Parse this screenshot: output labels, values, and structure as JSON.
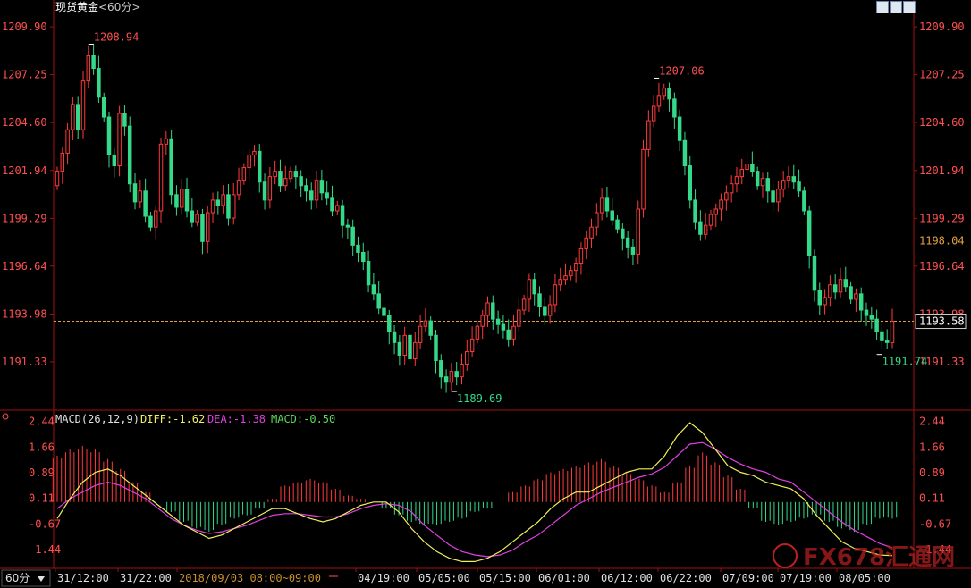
{
  "header": {
    "title": "现货黄金",
    "period": "<60分>"
  },
  "toolbar": {
    "icons": [
      "view-toggle-icon",
      "list-icon",
      "fullscreen-icon"
    ]
  },
  "price_axis": {
    "ticks": [
      "1209.90",
      "1207.25",
      "1204.60",
      "1201.94",
      "1199.29",
      "1196.64",
      "1193.98",
      "1191.33"
    ],
    "extra_right": "1198.04",
    "current": "1193.58"
  },
  "annotations": {
    "high1": "1208.94",
    "high2": "1207.06",
    "low1": "1189.69",
    "low2": "1191.74"
  },
  "macd": {
    "label": "MACD(26,12,9)",
    "diff": "DIFF:-1.62",
    "dea": "DEA:-1.38",
    "macd": "MACD:-0.50",
    "ticks": [
      "2.44",
      "1.66",
      "0.89",
      "0.11",
      "-0.67",
      "-1.44"
    ]
  },
  "time_axis": {
    "period_button": "60分",
    "labels": [
      "31/12:00",
      "31/22:00",
      "2018/09/03 08:00~09:00",
      "04/19:00",
      "05/05:00",
      "05/15:00",
      "06/01:00",
      "06/12:00",
      "06/22:00",
      "07/09:00",
      "07/19:00",
      "08/05:00"
    ]
  },
  "watermark": "FX678汇通网",
  "colors": {
    "up": "#ff3a3a",
    "down": "#34d989",
    "diff": "#f0f05a",
    "dea": "#e040e0",
    "axis": "#a01010",
    "price_text": "#ff5050"
  },
  "chart_data": [
    {
      "type": "candlestick",
      "title": "现货黄金",
      "period": "60分",
      "ylim": [
        1189.0,
        1210.5
      ],
      "current_price": 1193.58,
      "highest": 1208.94,
      "lowest": 1189.69,
      "series_close": [
        1201.9,
        1202.9,
        1204.2,
        1205.6,
        1204.2,
        1206.9,
        1208.3,
        1207.6,
        1206.0,
        1204.9,
        1202.8,
        1202.2,
        1205.1,
        1204.4,
        1201.2,
        1200.2,
        1200.8,
        1199.4,
        1198.8,
        1199.7,
        1203.4,
        1203.7,
        1200.6,
        1199.9,
        1200.9,
        1199.7,
        1199.1,
        1199.5,
        1198.0,
        1199.6,
        1200.3,
        1200.0,
        1200.6,
        1199.3,
        1200.6,
        1201.4,
        1202.1,
        1202.8,
        1203.0,
        1201.3,
        1200.3,
        1201.6,
        1201.9,
        1201.1,
        1201.5,
        1201.9,
        1201.6,
        1201.1,
        1200.8,
        1200.3,
        1201.4,
        1200.7,
        1200.4,
        1199.7,
        1200.0,
        1198.9,
        1198.8,
        1197.8,
        1197.4,
        1196.9,
        1195.6,
        1195.1,
        1194.3,
        1193.9,
        1193.0,
        1192.4,
        1191.7,
        1192.8,
        1191.5,
        1192.4,
        1193.3,
        1193.6,
        1192.8,
        1191.4,
        1190.5,
        1190.2,
        1190.8,
        1190.5,
        1191.2,
        1191.9,
        1192.6,
        1193.3,
        1193.9,
        1194.6,
        1193.7,
        1193.4,
        1193.1,
        1192.6,
        1193.3,
        1194.2,
        1194.8,
        1195.9,
        1195.1,
        1194.4,
        1193.9,
        1194.5,
        1195.6,
        1195.9,
        1196.1,
        1196.4,
        1196.8,
        1197.6,
        1198.2,
        1198.8,
        1199.6,
        1200.4,
        1199.7,
        1199.2,
        1198.7,
        1198.2,
        1197.7,
        1197.3,
        1199.8,
        1203.1,
        1204.7,
        1205.5,
        1206.1,
        1206.5,
        1205.9,
        1204.9,
        1203.6,
        1202.2,
        1200.3,
        1199.1,
        1198.4,
        1198.9,
        1199.5,
        1199.8,
        1200.3,
        1200.7,
        1201.2,
        1201.6,
        1202.0,
        1202.3,
        1201.9,
        1201.1,
        1201.5,
        1200.8,
        1200.2,
        1200.9,
        1201.4,
        1201.6,
        1201.3,
        1200.8,
        1199.7,
        1197.2,
        1195.3,
        1194.5,
        1194.9,
        1195.6,
        1195.2,
        1195.9,
        1195.5,
        1194.8,
        1195.1,
        1194.2,
        1193.9,
        1193.7,
        1193.0,
        1192.5,
        1192.4,
        1193.58
      ]
    },
    {
      "type": "line",
      "title": "MACD(26,12,9)",
      "ylim": [
        -1.95,
        2.75
      ],
      "series": [
        {
          "name": "DIFF",
          "values": [
            -0.5,
            0.1,
            0.6,
            0.9,
            1.0,
            0.8,
            0.5,
            0.2,
            -0.1,
            -0.4,
            -0.7,
            -0.9,
            -1.1,
            -1.0,
            -0.8,
            -0.6,
            -0.4,
            -0.2,
            -0.2,
            -0.35,
            -0.5,
            -0.6,
            -0.5,
            -0.3,
            -0.1,
            0.0,
            0.0,
            -0.3,
            -0.8,
            -1.2,
            -1.5,
            -1.7,
            -1.8,
            -1.8,
            -1.7,
            -1.5,
            -1.2,
            -0.9,
            -0.6,
            -0.2,
            0.1,
            0.3,
            0.3,
            0.5,
            0.7,
            0.9,
            1.0,
            1.0,
            1.4,
            2.0,
            2.4,
            2.1,
            1.6,
            1.1,
            0.9,
            0.8,
            0.6,
            0.5,
            0.4,
            0.1,
            -0.4,
            -0.8,
            -1.2,
            -1.4,
            -1.5,
            -1.6,
            -1.62
          ]
        },
        {
          "name": "DEA",
          "values": [
            -0.2,
            0.1,
            0.3,
            0.5,
            0.6,
            0.5,
            0.3,
            0.1,
            -0.2,
            -0.5,
            -0.7,
            -0.85,
            -0.95,
            -0.9,
            -0.8,
            -0.7,
            -0.55,
            -0.4,
            -0.35,
            -0.35,
            -0.4,
            -0.45,
            -0.45,
            -0.35,
            -0.2,
            -0.1,
            -0.05,
            -0.1,
            -0.3,
            -0.7,
            -1.0,
            -1.3,
            -1.5,
            -1.6,
            -1.65,
            -1.6,
            -1.45,
            -1.2,
            -1.0,
            -0.7,
            -0.4,
            -0.1,
            0.1,
            0.3,
            0.45,
            0.6,
            0.75,
            0.85,
            1.05,
            1.4,
            1.75,
            1.8,
            1.6,
            1.35,
            1.15,
            1.0,
            0.9,
            0.7,
            0.6,
            0.3,
            0.0,
            -0.3,
            -0.6,
            -0.85,
            -1.05,
            -1.25,
            -1.38
          ]
        }
      ],
      "histogram": [
        1.4,
        1.6,
        1.7,
        1.6,
        1.3,
        1.0,
        0.6,
        0.3,
        0.0,
        -0.3,
        -0.6,
        -0.8,
        -0.9,
        -0.7,
        -0.5,
        -0.4,
        -0.2,
        0.1,
        0.5,
        0.6,
        0.7,
        0.6,
        0.4,
        0.2,
        0.1,
        0.0,
        -0.2,
        -0.4,
        -0.6,
        -0.7,
        -0.7,
        -0.6,
        -0.5,
        -0.3,
        -0.2,
        0.0,
        0.3,
        0.5,
        0.7,
        0.9,
        1.0,
        1.1,
        1.2,
        1.3,
        1.1,
        0.9,
        0.7,
        0.5,
        0.3,
        0.6,
        1.1,
        1.5,
        1.2,
        0.8,
        0.4,
        -0.2,
        -0.6,
        -0.7,
        -0.6,
        -0.5,
        -0.4,
        -0.6,
        -0.8,
        -0.9,
        -0.7,
        -0.5,
        -0.5
      ]
    }
  ]
}
